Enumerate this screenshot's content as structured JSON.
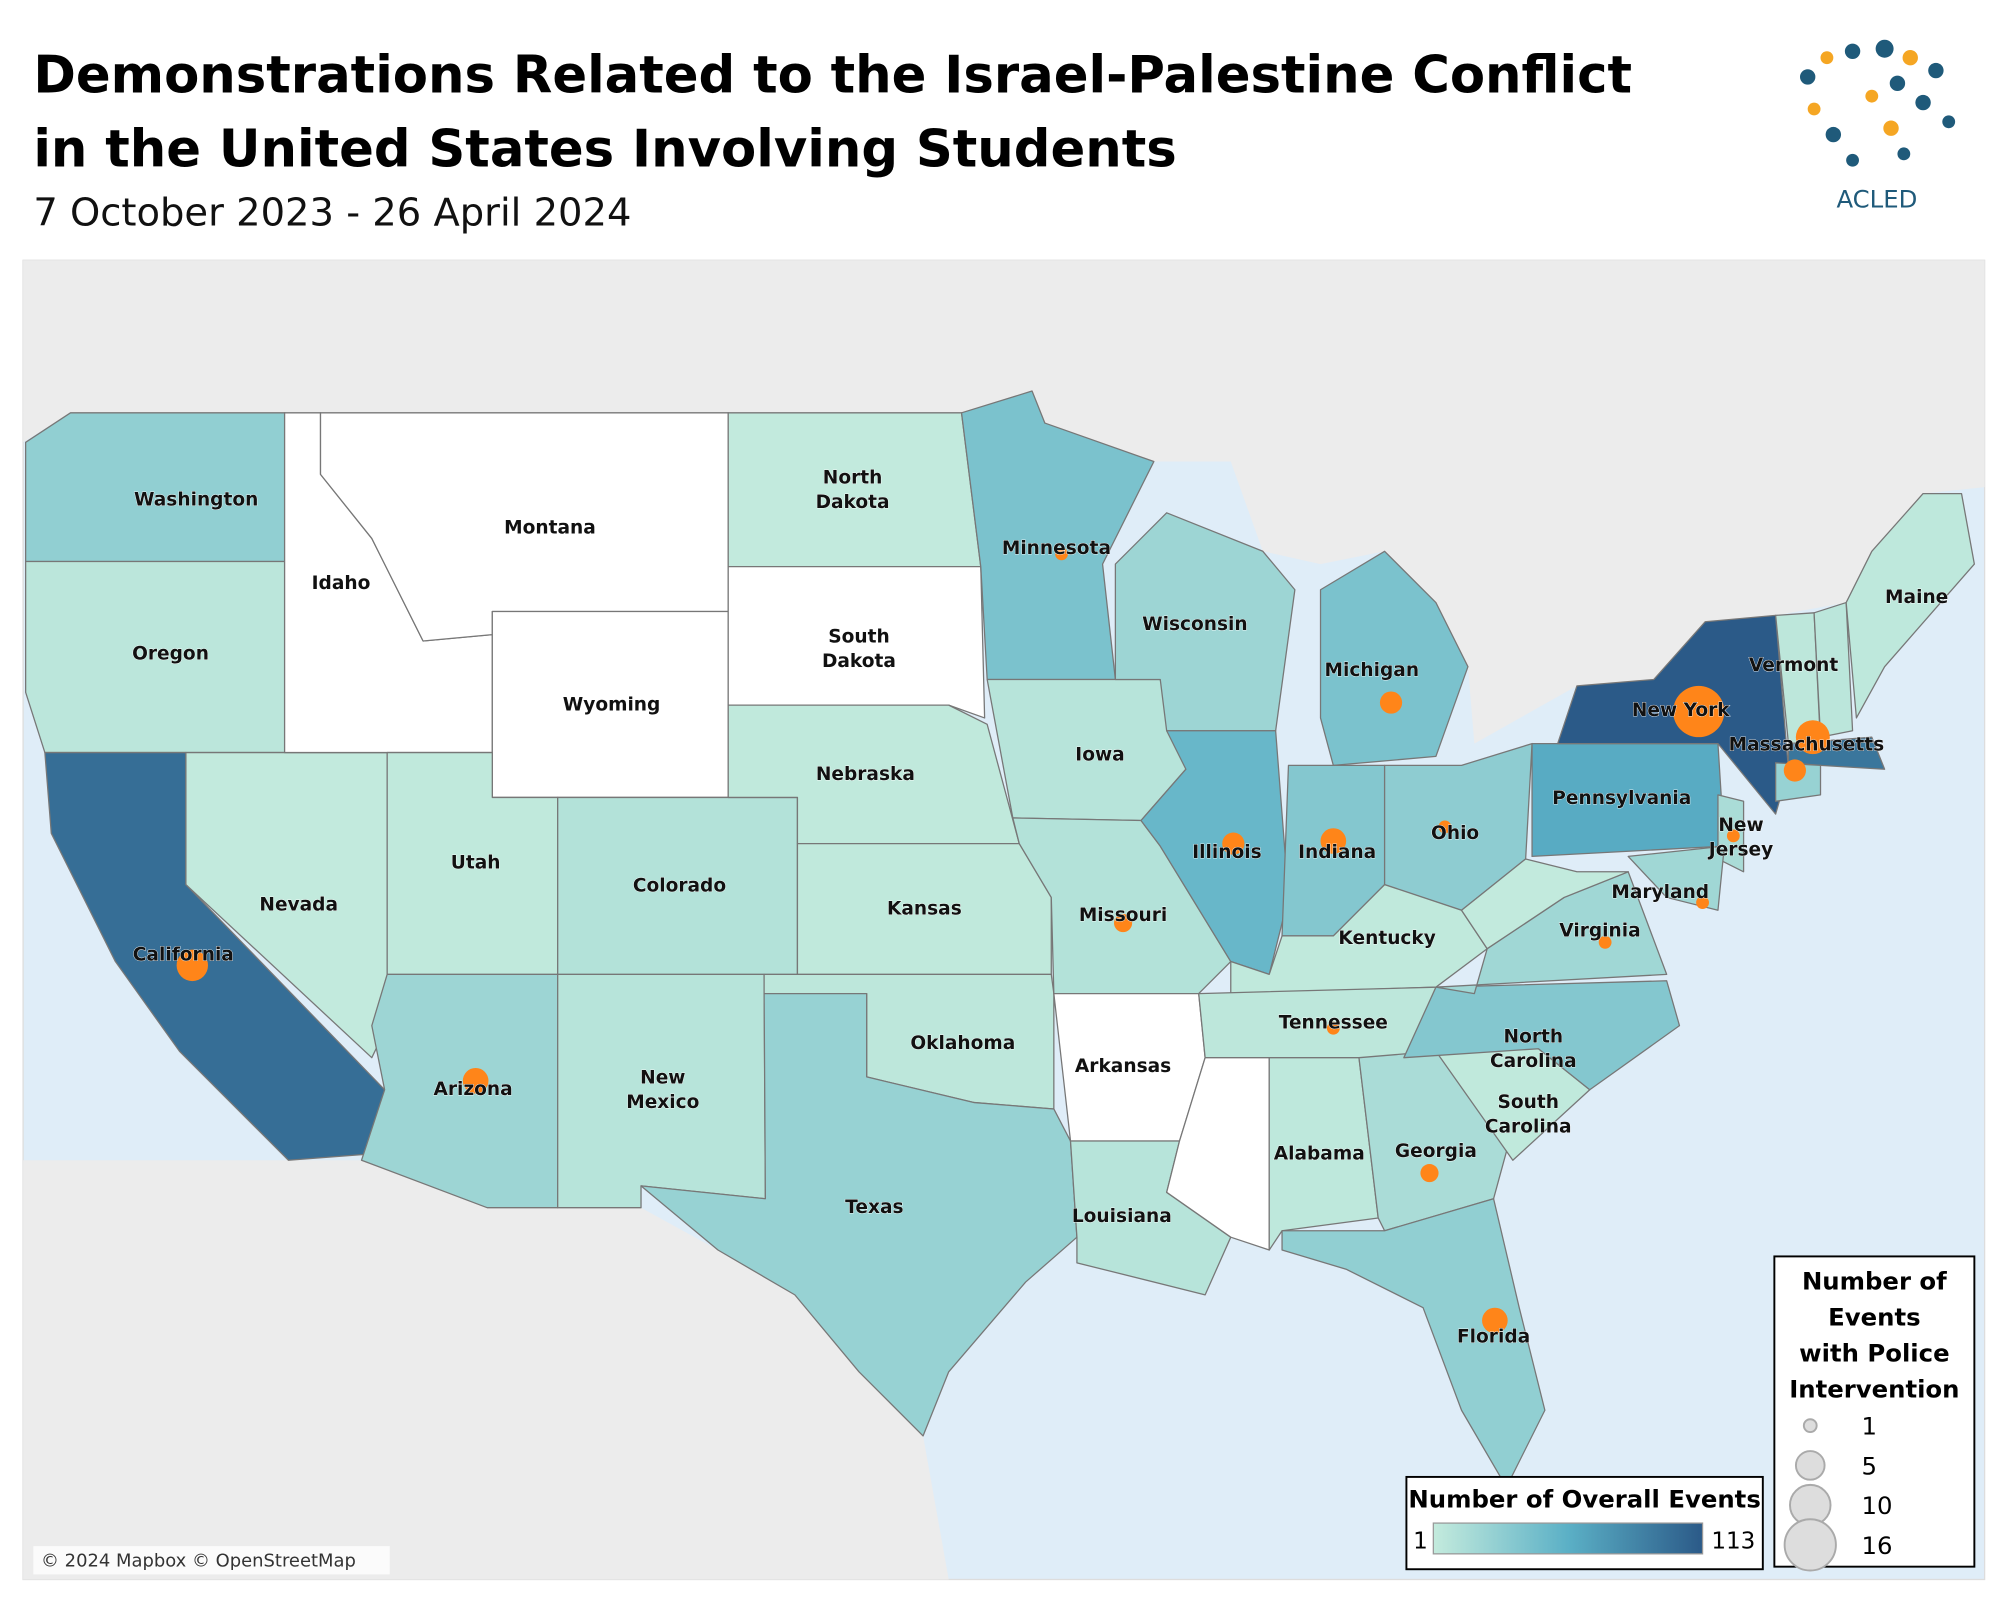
{
  "title_lines": [
    "Demonstrations Related to the Israel-Palestine Conflict",
    "in the United States Involving Students"
  ],
  "subtitle": "7 October 2023 - 26 April 2024",
  "logo": "ACLED",
  "attribution": "© 2024 Mapbox © OpenStreetMap",
  "legend_color": {
    "title": "Number of Overall Events",
    "min": 1,
    "max": 113,
    "colors": [
      "#c4ebdd",
      "#5bb0c6",
      "#2b5a88"
    ]
  },
  "legend_size": {
    "title_lines": [
      "Number of",
      "Events",
      "with Police",
      "Intervention"
    ],
    "values": [
      1,
      5,
      10,
      16
    ],
    "color": "#ff8519"
  },
  "states": [
    {
      "name": "Washington",
      "events": 28,
      "police": null
    },
    {
      "name": "Oregon",
      "events": 6,
      "police": null
    },
    {
      "name": "California",
      "events": 100,
      "police": 6
    },
    {
      "name": "Nevada",
      "events": 2,
      "police": null
    },
    {
      "name": "Idaho",
      "events": null,
      "police": null
    },
    {
      "name": "Montana",
      "events": null,
      "police": null
    },
    {
      "name": "Wyoming",
      "events": null,
      "police": null
    },
    {
      "name": "Utah",
      "events": 3,
      "police": null
    },
    {
      "name": "Colorado",
      "events": 10,
      "police": null
    },
    {
      "name": "Arizona",
      "events": 22,
      "police": 4
    },
    {
      "name": "New Mexico",
      "events": 8,
      "police": null
    },
    {
      "name": "North Dakota",
      "events": 2,
      "police": null
    },
    {
      "name": "South Dakota",
      "events": null,
      "police": null
    },
    {
      "name": "Nebraska",
      "events": 3,
      "police": null
    },
    {
      "name": "Kansas",
      "events": 3,
      "police": null
    },
    {
      "name": "Oklahoma",
      "events": 5,
      "police": null
    },
    {
      "name": "Texas",
      "events": 25,
      "police": null
    },
    {
      "name": "Minnesota",
      "events": 40,
      "police": 1
    },
    {
      "name": "Iowa",
      "events": 8,
      "police": null
    },
    {
      "name": "Missouri",
      "events": 10,
      "police": 2
    },
    {
      "name": "Arkansas",
      "events": null,
      "police": null
    },
    {
      "name": "Louisiana",
      "events": 8,
      "police": null
    },
    {
      "name": "Wisconsin",
      "events": 22,
      "police": null
    },
    {
      "name": "Illinois",
      "events": 50,
      "police": 3
    },
    {
      "name": "Michigan",
      "events": 40,
      "police": 3
    },
    {
      "name": "Indiana",
      "events": 35,
      "police": 4
    },
    {
      "name": "Ohio",
      "events": 30,
      "police": 1
    },
    {
      "name": "Kentucky",
      "events": 3,
      "police": null
    },
    {
      "name": "Tennessee",
      "events": 5,
      "police": 1
    },
    {
      "name": null,
      "events": null,
      "police": null
    },
    {
      "name": "Alabama",
      "events": 4,
      "police": null
    },
    {
      "name": "Georgia",
      "events": 15,
      "police": 2
    },
    {
      "name": "Florida",
      "events": 28,
      "police": 4
    },
    {
      "name": "South Carolina",
      "events": 3,
      "police": null
    },
    {
      "name": "North Carolina",
      "events": 35,
      "police": null
    },
    {
      "name": "Virginia",
      "events": 20,
      "police": 1
    },
    {
      "name": null,
      "events": 2,
      "police": null
    },
    {
      "name": "Pennsylvania",
      "events": 60,
      "police": null
    },
    {
      "name": "New York",
      "events": 113,
      "police": 16
    },
    {
      "name": "New Jersey",
      "events": 15,
      "police": 1
    },
    {
      "name": "Maryland",
      "events": 20,
      "police": 1
    },
    {
      "name": "Vermont",
      "events": 5,
      "police": null
    },
    {
      "name": null,
      "events": 6,
      "police": null
    },
    {
      "name": "Massachusetts",
      "events": 95,
      "police": 7
    },
    {
      "name": null,
      "events": 25,
      "police": 3
    },
    {
      "name": "Maine",
      "events": 4,
      "police": null
    }
  ]
}
